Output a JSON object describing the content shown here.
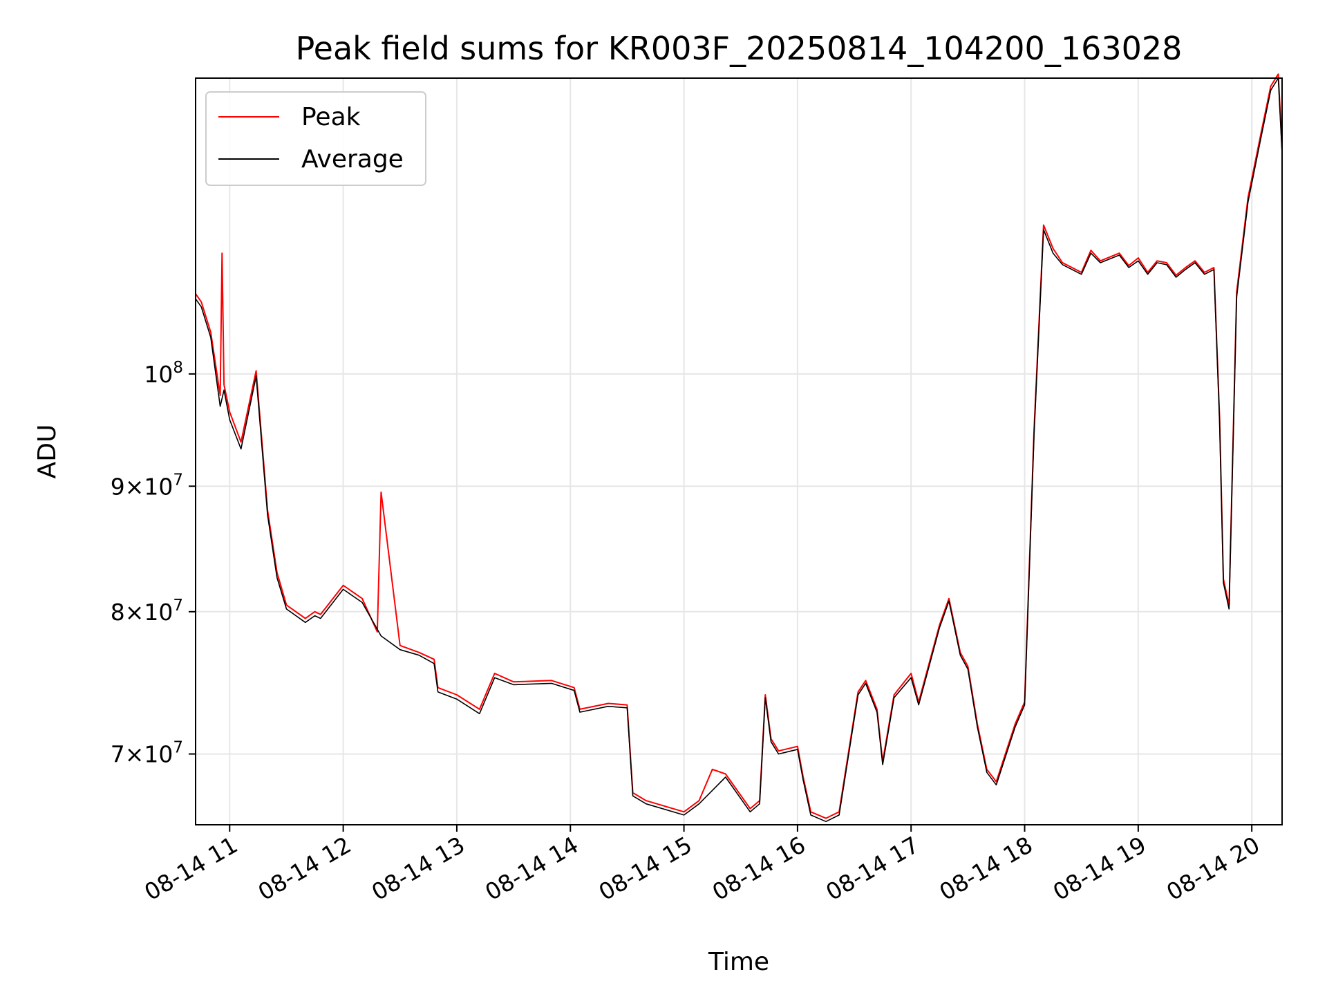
{
  "chart_data": {
    "type": "line",
    "title": "Peak field sums for KR003F_20250814_104200_163028",
    "xlabel": "Time",
    "ylabel": "ADU",
    "y_scale": "log",
    "grid": true,
    "legend_placement": "top-left",
    "xlim": [
      "2025-08-14 10:42",
      "2025-08-14 20:16"
    ],
    "ylim": [
      65500000,
      132000000
    ],
    "x_ticks": [
      {
        "value": "2025-08-14 11:00",
        "label": "08-14 11"
      },
      {
        "value": "2025-08-14 12:00",
        "label": "08-14 12"
      },
      {
        "value": "2025-08-14 13:00",
        "label": "08-14 13"
      },
      {
        "value": "2025-08-14 14:00",
        "label": "08-14 14"
      },
      {
        "value": "2025-08-14 15:00",
        "label": "08-14 15"
      },
      {
        "value": "2025-08-14 16:00",
        "label": "08-14 16"
      },
      {
        "value": "2025-08-14 17:00",
        "label": "08-14 17"
      },
      {
        "value": "2025-08-14 18:00",
        "label": "08-14 18"
      },
      {
        "value": "2025-08-14 19:00",
        "label": "08-14 19"
      },
      {
        "value": "2025-08-14 20:00",
        "label": "08-14 20"
      }
    ],
    "y_ticks": [
      {
        "value": 70000000,
        "base": "7",
        "exp": "7"
      },
      {
        "value": 80000000,
        "base": "8",
        "exp": "7"
      },
      {
        "value": 90000000,
        "base": "9",
        "exp": "7"
      },
      {
        "value": 100000000,
        "base": "",
        "exp": "8"
      }
    ],
    "series": [
      {
        "name": "Peak",
        "color": "#ff0000",
        "x": [
          "2025-08-14 10:42",
          "2025-08-14 10:45",
          "2025-08-14 10:50",
          "2025-08-14 10:55",
          "2025-08-14 10:56",
          "2025-08-14 10:57",
          "2025-08-14 11:00",
          "2025-08-14 11:06",
          "2025-08-14 11:14",
          "2025-08-14 11:20",
          "2025-08-14 11:25",
          "2025-08-14 11:30",
          "2025-08-14 11:40",
          "2025-08-14 11:45",
          "2025-08-14 11:48",
          "2025-08-14 12:00",
          "2025-08-14 12:10",
          "2025-08-14 12:18",
          "2025-08-14 12:20",
          "2025-08-14 12:30",
          "2025-08-14 12:40",
          "2025-08-14 12:48",
          "2025-08-14 12:50",
          "2025-08-14 13:00",
          "2025-08-14 13:12",
          "2025-08-14 13:20",
          "2025-08-14 13:30",
          "2025-08-14 13:50",
          "2025-08-14 14:02",
          "2025-08-14 14:05",
          "2025-08-14 14:20",
          "2025-08-14 14:30",
          "2025-08-14 14:33",
          "2025-08-14 14:40",
          "2025-08-14 15:00",
          "2025-08-14 15:08",
          "2025-08-14 15:15",
          "2025-08-14 15:22",
          "2025-08-14 15:35",
          "2025-08-14 15:40",
          "2025-08-14 15:43",
          "2025-08-14 15:46",
          "2025-08-14 15:50",
          "2025-08-14 16:00",
          "2025-08-14 16:03",
          "2025-08-14 16:07",
          "2025-08-14 16:15",
          "2025-08-14 16:22",
          "2025-08-14 16:32",
          "2025-08-14 16:36",
          "2025-08-14 16:42",
          "2025-08-14 16:45",
          "2025-08-14 16:51",
          "2025-08-14 17:00",
          "2025-08-14 17:04",
          "2025-08-14 17:15",
          "2025-08-14 17:20",
          "2025-08-14 17:26",
          "2025-08-14 17:30",
          "2025-08-14 17:35",
          "2025-08-14 17:40",
          "2025-08-14 17:45",
          "2025-08-14 17:55",
          "2025-08-14 18:00",
          "2025-08-14 18:05",
          "2025-08-14 18:10",
          "2025-08-14 18:15",
          "2025-08-14 18:20",
          "2025-08-14 18:30",
          "2025-08-14 18:35",
          "2025-08-14 18:40",
          "2025-08-14 18:50",
          "2025-08-14 18:55",
          "2025-08-14 19:00",
          "2025-08-14 19:05",
          "2025-08-14 19:10",
          "2025-08-14 19:15",
          "2025-08-14 19:20",
          "2025-08-14 19:25",
          "2025-08-14 19:30",
          "2025-08-14 19:35",
          "2025-08-14 19:40",
          "2025-08-14 19:43",
          "2025-08-14 19:45",
          "2025-08-14 19:48",
          "2025-08-14 19:52",
          "2025-08-14 19:58",
          "2025-08-14 20:05",
          "2025-08-14 20:10",
          "2025-08-14 20:14",
          "2025-08-14 20:16"
        ],
        "values": [
          107800000,
          107000000,
          104000000,
          98000000,
          112000000,
          99000000,
          96500000,
          93800000,
          100300000,
          88000000,
          83000000,
          80500000,
          79500000,
          80000000,
          79800000,
          82000000,
          81000000,
          78500000,
          89500000,
          77500000,
          77000000,
          76500000,
          74500000,
          74000000,
          73000000,
          75500000,
          74900000,
          75000000,
          74500000,
          73000000,
          73400000,
          73300000,
          67500000,
          67000000,
          66300000,
          67000000,
          69000000,
          68700000,
          66500000,
          67000000,
          74000000,
          71000000,
          70200000,
          70500000,
          68500000,
          66300000,
          65900000,
          66300000,
          74200000,
          75000000,
          73000000,
          69500000,
          74000000,
          75500000,
          73500000,
          79000000,
          81000000,
          77000000,
          76000000,
          72000000,
          69000000,
          68200000,
          72000000,
          73500000,
          95000000,
          115000000,
          112500000,
          111000000,
          110000000,
          112300000,
          111200000,
          112000000,
          110700000,
          111500000,
          110000000,
          111200000,
          111000000,
          109700000,
          110500000,
          111200000,
          110000000,
          110500000,
          96000000,
          82500000,
          80500000,
          108000000,
          118000000,
          125500000,
          131000000,
          132500000,
          123500000
        ]
      },
      {
        "name": "Average",
        "color": "#000000",
        "x": [
          "2025-08-14 10:42",
          "2025-08-14 10:45",
          "2025-08-14 10:50",
          "2025-08-14 10:55",
          "2025-08-14 10:57",
          "2025-08-14 11:00",
          "2025-08-14 11:06",
          "2025-08-14 11:14",
          "2025-08-14 11:20",
          "2025-08-14 11:25",
          "2025-08-14 11:30",
          "2025-08-14 11:40",
          "2025-08-14 11:45",
          "2025-08-14 11:48",
          "2025-08-14 12:00",
          "2025-08-14 12:10",
          "2025-08-14 12:20",
          "2025-08-14 12:30",
          "2025-08-14 12:40",
          "2025-08-14 12:48",
          "2025-08-14 12:50",
          "2025-08-14 13:00",
          "2025-08-14 13:12",
          "2025-08-14 13:20",
          "2025-08-14 13:30",
          "2025-08-14 13:50",
          "2025-08-14 14:02",
          "2025-08-14 14:05",
          "2025-08-14 14:20",
          "2025-08-14 14:30",
          "2025-08-14 14:33",
          "2025-08-14 14:40",
          "2025-08-14 15:00",
          "2025-08-14 15:08",
          "2025-08-14 15:22",
          "2025-08-14 15:35",
          "2025-08-14 15:40",
          "2025-08-14 15:43",
          "2025-08-14 15:46",
          "2025-08-14 15:50",
          "2025-08-14 16:00",
          "2025-08-14 16:03",
          "2025-08-14 16:07",
          "2025-08-14 16:15",
          "2025-08-14 16:22",
          "2025-08-14 16:32",
          "2025-08-14 16:36",
          "2025-08-14 16:42",
          "2025-08-14 16:45",
          "2025-08-14 16:51",
          "2025-08-14 17:00",
          "2025-08-14 17:04",
          "2025-08-14 17:15",
          "2025-08-14 17:20",
          "2025-08-14 17:26",
          "2025-08-14 17:30",
          "2025-08-14 17:35",
          "2025-08-14 17:40",
          "2025-08-14 17:45",
          "2025-08-14 17:55",
          "2025-08-14 18:00",
          "2025-08-14 18:05",
          "2025-08-14 18:10",
          "2025-08-14 18:15",
          "2025-08-14 18:20",
          "2025-08-14 18:30",
          "2025-08-14 18:35",
          "2025-08-14 18:40",
          "2025-08-14 18:50",
          "2025-08-14 18:55",
          "2025-08-14 19:00",
          "2025-08-14 19:05",
          "2025-08-14 19:10",
          "2025-08-14 19:15",
          "2025-08-14 19:20",
          "2025-08-14 19:25",
          "2025-08-14 19:30",
          "2025-08-14 19:35",
          "2025-08-14 19:40",
          "2025-08-14 19:43",
          "2025-08-14 19:45",
          "2025-08-14 19:48",
          "2025-08-14 19:52",
          "2025-08-14 19:58",
          "2025-08-14 20:05",
          "2025-08-14 20:10",
          "2025-08-14 20:14",
          "2025-08-14 20:16"
        ],
        "values": [
          107300000,
          106500000,
          103500000,
          97000000,
          98500000,
          95800000,
          93200000,
          99800000,
          87600000,
          82600000,
          80200000,
          79200000,
          79700000,
          79500000,
          81700000,
          80700000,
          78200000,
          77200000,
          76800000,
          76200000,
          74200000,
          73700000,
          72700000,
          75200000,
          74700000,
          74800000,
          74300000,
          72800000,
          73200000,
          73100000,
          67300000,
          66800000,
          66100000,
          66800000,
          68500000,
          66300000,
          66800000,
          73800000,
          70800000,
          70000000,
          70300000,
          68300000,
          66100000,
          65700000,
          66100000,
          74000000,
          74800000,
          72800000,
          69300000,
          73800000,
          75200000,
          73300000,
          78800000,
          80800000,
          76800000,
          75800000,
          71800000,
          68800000,
          68000000,
          71800000,
          73300000,
          94500000,
          114500000,
          112000000,
          110800000,
          109800000,
          112000000,
          111000000,
          111800000,
          110500000,
          111200000,
          109800000,
          111000000,
          110800000,
          109500000,
          110300000,
          111000000,
          109800000,
          110300000,
          95500000,
          82200000,
          80200000,
          107500000,
          117500000,
          125000000,
          130500000,
          132000000,
          123000000
        ]
      }
    ]
  }
}
